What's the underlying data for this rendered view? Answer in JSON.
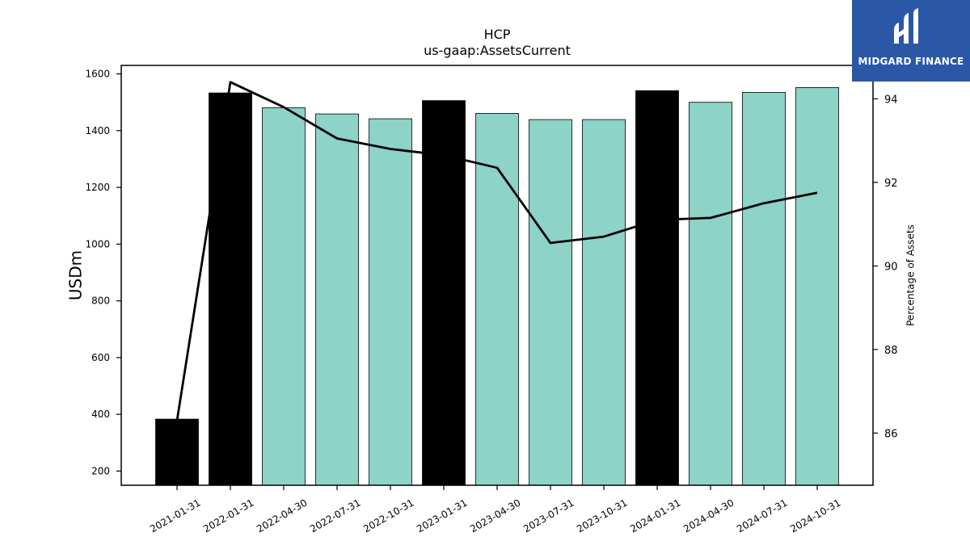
{
  "chart_data": {
    "type": "bar",
    "title": "HCP",
    "subtitle": "us-gaap:AssetsCurrent",
    "ylabel": "USDm",
    "ylabel_right": "Percentage of Assets",
    "ylim": [
      150,
      1630
    ],
    "ylim_right": [
      84.75,
      94.8
    ],
    "yticks": [
      200,
      400,
      600,
      800,
      1000,
      1200,
      1400,
      1600
    ],
    "yticks_right": [
      86,
      88,
      90,
      92,
      94
    ],
    "grid": false,
    "categories": [
      "2021-01-31",
      "2022-01-31",
      "2022-04-30",
      "2022-07-31",
      "2022-10-31",
      "2023-01-31",
      "2023-04-30",
      "2023-07-31",
      "2023-10-31",
      "2024-01-31",
      "2024-04-30",
      "2024-07-31",
      "2024-10-31"
    ],
    "series": [
      {
        "type": "bar",
        "axis": "left",
        "values": [
          383,
          1533,
          1481,
          1459,
          1442,
          1506,
          1461,
          1439,
          1439,
          1541,
          1500,
          1535,
          1552
        ],
        "colors": [
          "#000000",
          "#000000",
          "#8dd3c7",
          "#8dd3c7",
          "#8dd3c7",
          "#000000",
          "#8dd3c7",
          "#8dd3c7",
          "#8dd3c7",
          "#000000",
          "#8dd3c7",
          "#8dd3c7",
          "#8dd3c7"
        ]
      },
      {
        "type": "line",
        "axis": "right",
        "values": [
          86.3,
          94.4,
          93.8,
          93.05,
          92.8,
          92.65,
          92.35,
          90.55,
          90.7,
          91.1,
          91.15,
          91.5,
          91.75
        ],
        "color": "#000000"
      }
    ]
  },
  "logo": {
    "text": "MIDGARD FINANCE",
    "background": "#2b57a7"
  }
}
